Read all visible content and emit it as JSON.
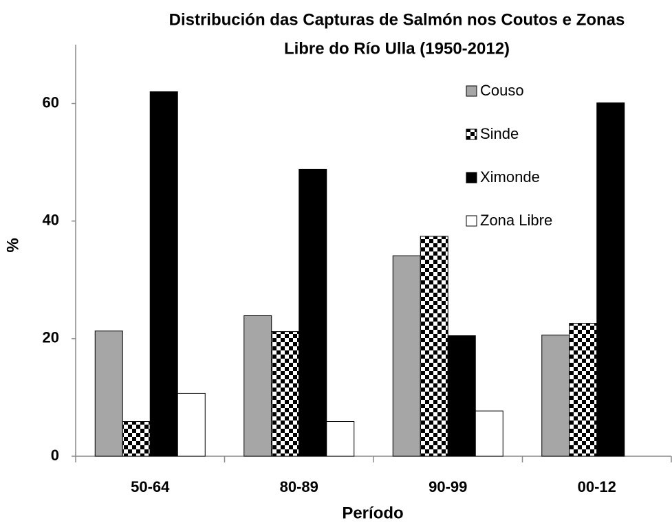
{
  "chart_data": {
    "type": "bar",
    "title": [
      "Distribución das Capturas de Salmón nos Coutos e Zonas",
      "Libre do Río Ulla (1950-2012)"
    ],
    "xlabel": "Período",
    "ylabel": "%",
    "categories": [
      "50-64",
      "80-89",
      "90-99",
      "00-12"
    ],
    "series": [
      {
        "name": "Couso",
        "color": "#a6a6a6",
        "values": [
          21.3,
          23.9,
          34.1,
          20.6
        ]
      },
      {
        "name": "Sinde",
        "color": "checkerboard",
        "values": [
          5.9,
          21.2,
          37.4,
          22.6
        ]
      },
      {
        "name": "Ximonde",
        "color": "#000000",
        "values": [
          62.0,
          48.8,
          20.5,
          60.1
        ]
      },
      {
        "name": "Zona Libre",
        "color": "#ffffff",
        "values": [
          10.7,
          5.9,
          7.7,
          0
        ]
      }
    ],
    "ylim": [
      0,
      70
    ],
    "yticks": [
      0,
      20,
      40,
      60
    ],
    "grid": false,
    "legend": "upper right"
  }
}
